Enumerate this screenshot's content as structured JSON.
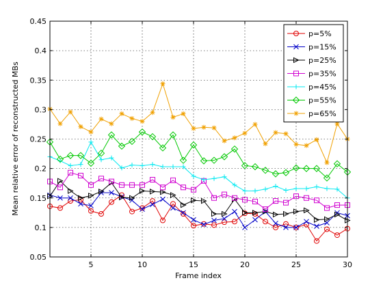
{
  "chart_data": {
    "type": "line",
    "title": "",
    "xlabel": "Frame index",
    "ylabel": "Mean relative error of reconstructed MBs",
    "xlim": [
      1,
      30
    ],
    "ylim": [
      0.05,
      0.45
    ],
    "xticks": [
      "5",
      "10",
      "15",
      "20",
      "25",
      "30"
    ],
    "xtick_values": [
      5,
      10,
      15,
      20,
      25,
      30
    ],
    "yticks": [
      "0.05",
      "0.1",
      "0.15",
      "0.2",
      "0.25",
      "0.3",
      "0.35",
      "0.4",
      "0.45"
    ],
    "ytick_values": [
      0.05,
      0.1,
      0.15,
      0.2,
      0.25,
      0.3,
      0.35,
      0.4,
      0.45
    ],
    "grid": true,
    "legend_position": "top-right",
    "x": [
      1,
      2,
      3,
      4,
      5,
      6,
      7,
      8,
      9,
      10,
      11,
      12,
      13,
      14,
      15,
      16,
      17,
      18,
      19,
      20,
      21,
      22,
      23,
      24,
      25,
      26,
      27,
      28,
      29,
      30
    ],
    "series": [
      {
        "name": "p=5%",
        "color": "#e00000",
        "marker": "circle",
        "values": [
          0.136,
          0.133,
          0.145,
          0.147,
          0.128,
          0.123,
          0.143,
          0.155,
          0.127,
          0.133,
          0.145,
          0.112,
          0.14,
          0.123,
          0.103,
          0.106,
          0.104,
          0.109,
          0.11,
          0.124,
          0.123,
          0.11,
          0.1,
          0.106,
          0.1,
          0.105,
          0.077,
          0.097,
          0.087,
          0.098
        ]
      },
      {
        "name": "p=15%",
        "color": "#0000c8",
        "marker": "x",
        "values": [
          0.155,
          0.15,
          0.15,
          0.14,
          0.137,
          0.159,
          0.159,
          0.152,
          0.146,
          0.131,
          0.139,
          0.148,
          0.133,
          0.125,
          0.113,
          0.105,
          0.112,
          0.115,
          0.127,
          0.1,
          0.113,
          0.127,
          0.107,
          0.1,
          0.1,
          0.11,
          0.102,
          0.108,
          0.125,
          0.12
        ]
      },
      {
        "name": "p=25%",
        "color": "#000000",
        "marker": "triangle-right",
        "values": [
          0.153,
          0.179,
          0.162,
          0.15,
          0.154,
          0.161,
          0.176,
          0.151,
          0.15,
          0.162,
          0.161,
          0.16,
          0.155,
          0.138,
          0.146,
          0.145,
          0.123,
          0.123,
          0.148,
          0.125,
          0.125,
          0.127,
          0.122,
          0.123,
          0.127,
          0.129,
          0.113,
          0.114,
          0.122,
          0.112
        ]
      },
      {
        "name": "p=35%",
        "color": "#d000d0",
        "marker": "square",
        "values": [
          0.178,
          0.168,
          0.193,
          0.188,
          0.172,
          0.183,
          0.178,
          0.172,
          0.172,
          0.172,
          0.181,
          0.168,
          0.18,
          0.168,
          0.164,
          0.179,
          0.15,
          0.156,
          0.15,
          0.147,
          0.144,
          0.131,
          0.145,
          0.142,
          0.153,
          0.15,
          0.146,
          0.133,
          0.138,
          0.138
        ]
      },
      {
        "name": "p=45%",
        "color": "#00e8f0",
        "marker": "plus",
        "values": [
          0.22,
          0.213,
          0.205,
          0.207,
          0.245,
          0.215,
          0.218,
          0.201,
          0.206,
          0.205,
          0.207,
          0.203,
          0.203,
          0.203,
          0.187,
          0.181,
          0.183,
          0.186,
          0.172,
          0.162,
          0.162,
          0.165,
          0.17,
          0.163,
          0.166,
          0.166,
          0.169,
          0.166,
          0.165,
          0.15
        ]
      },
      {
        "name": "p=55%",
        "color": "#00c800",
        "marker": "diamond",
        "values": [
          0.245,
          0.216,
          0.222,
          0.222,
          0.209,
          0.226,
          0.257,
          0.238,
          0.246,
          0.262,
          0.254,
          0.235,
          0.257,
          0.214,
          0.24,
          0.213,
          0.214,
          0.22,
          0.233,
          0.205,
          0.203,
          0.197,
          0.191,
          0.193,
          0.201,
          0.2,
          0.2,
          0.184,
          0.208,
          0.194
        ]
      },
      {
        "name": "p=65%",
        "color": "#f0a000",
        "marker": "star",
        "values": [
          0.301,
          0.276,
          0.296,
          0.271,
          0.262,
          0.284,
          0.276,
          0.293,
          0.285,
          0.28,
          0.295,
          0.344,
          0.287,
          0.293,
          0.268,
          0.27,
          0.269,
          0.247,
          0.252,
          0.26,
          0.275,
          0.242,
          0.261,
          0.259,
          0.241,
          0.239,
          0.249,
          0.21,
          0.276,
          0.25
        ]
      }
    ]
  }
}
